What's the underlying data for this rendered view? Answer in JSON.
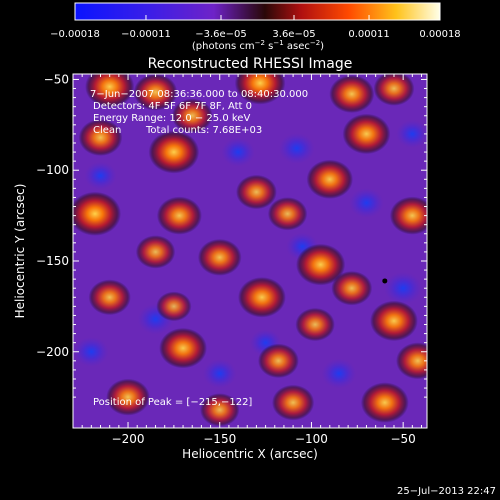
{
  "chart_data": {
    "type": "heatmap",
    "title": "Reconstructed RHESSI Image",
    "xlabel": "Heliocentric X (arcsec)",
    "ylabel": "Heliocentric Y (arcsec)",
    "xlim": [
      -230,
      -37
    ],
    "ylim": [
      -242,
      -47
    ],
    "x_ticks": [
      -200,
      -150,
      -100,
      -50
    ],
    "x_tick_labels": [
      "−200",
      "−150",
      "−100",
      "−50"
    ],
    "y_ticks": [
      -200,
      -150,
      -100,
      -50
    ],
    "y_tick_labels": [
      "−200",
      "−150",
      "−100",
      "−50"
    ],
    "colorbar": {
      "range": [
        -0.00018,
        0.00018
      ],
      "ticks": [
        -0.00018,
        -0.00011,
        -3.6e-05,
        3.6e-05,
        0.00011,
        0.00018
      ],
      "tick_labels": [
        "−0.00018",
        "−0.00011",
        "−3.6e−05",
        "3.6e−05",
        "0.00011",
        "0.00018"
      ],
      "unit_text": "(photons cm",
      "unit_sup1": "−2",
      "unit_mid": " s",
      "unit_sup2": "−1",
      "unit_asec": " asec",
      "unit_sup3": "−2",
      "unit_close": ")"
    },
    "annotations": [
      "7−Jun−2007 08:36:36.000 to 08:40:30.000",
      "Detectors: 4F 5F 6F 7F 8F, Att 0",
      "Energy Range: 12.0 − 25.0 keV",
      "Clean",
      "Total counts: 7.68E+03"
    ],
    "peak_label": "Position of Peak = [−215,−122]",
    "peak_marker": [
      -60,
      -161
    ],
    "hot_spots": [
      [
        -210,
        -54,
        0.9
      ],
      [
        -185,
        -57,
        0.7
      ],
      [
        -128,
        -52,
        0.95
      ],
      [
        -78,
        -58,
        0.75
      ],
      [
        -55,
        -55,
        0.6
      ],
      [
        -215,
        -82,
        0.7
      ],
      [
        -175,
        -90,
        0.95
      ],
      [
        -165,
        -70,
        0.6
      ],
      [
        -70,
        -80,
        0.85
      ],
      [
        -90,
        -105,
        0.8
      ],
      [
        -113,
        -124,
        0.55
      ],
      [
        -218,
        -124,
        1.0
      ],
      [
        -172,
        -125,
        0.75
      ],
      [
        -130,
        -112,
        0.6
      ],
      [
        -45,
        -125,
        0.75
      ],
      [
        -185,
        -145,
        0.55
      ],
      [
        -150,
        -148,
        0.7
      ],
      [
        -95,
        -152,
        0.9
      ],
      [
        -210,
        -170,
        0.65
      ],
      [
        -127,
        -170,
        0.85
      ],
      [
        -78,
        -165,
        0.6
      ],
      [
        -55,
        -183,
        0.85
      ],
      [
        -170,
        -198,
        0.85
      ],
      [
        -118,
        -205,
        0.6
      ],
      [
        -98,
        -185,
        0.55
      ],
      [
        -42,
        -205,
        0.7
      ],
      [
        -200,
        -225,
        0.7
      ],
      [
        -110,
        -228,
        0.65
      ],
      [
        -150,
        -232,
        0.55
      ],
      [
        -60,
        -228,
        0.85
      ],
      [
        -175,
        -175,
        0.4
      ]
    ],
    "cold_spots": [
      [
        -50,
        -165,
        0.7
      ],
      [
        -108,
        -88,
        0.6
      ],
      [
        -70,
        -118,
        0.55
      ],
      [
        -185,
        -182,
        0.6
      ],
      [
        -85,
        -212,
        0.55
      ],
      [
        -150,
        -212,
        0.5
      ],
      [
        -215,
        -103,
        0.45
      ],
      [
        -140,
        -90,
        0.5
      ],
      [
        -105,
        -142,
        0.45
      ],
      [
        -220,
        -200,
        0.55
      ],
      [
        -45,
        -80,
        0.45
      ],
      [
        -125,
        -195,
        0.4
      ]
    ]
  },
  "footer": {
    "timestamp": "25−Jul−2013 22:47"
  }
}
